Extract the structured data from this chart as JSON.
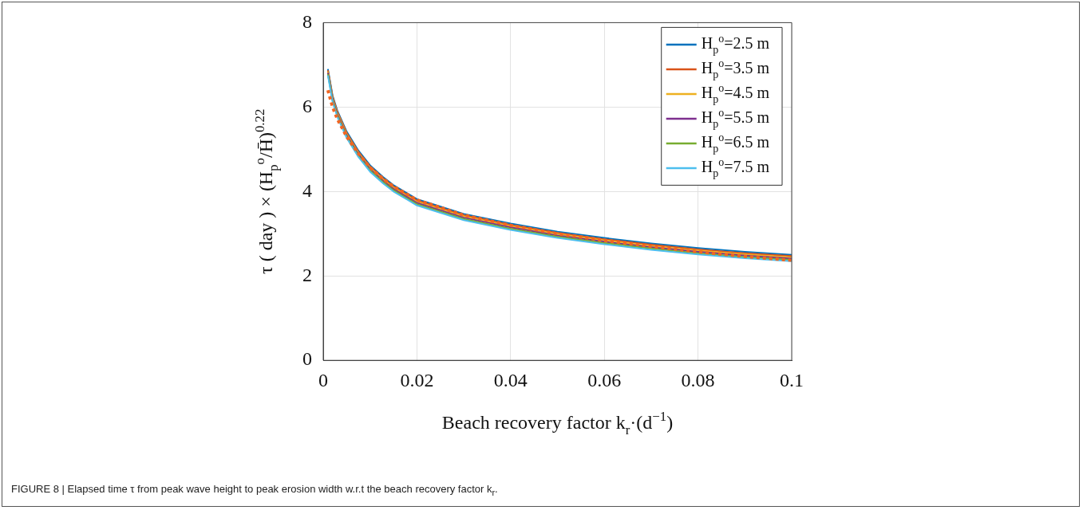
{
  "chart_data": {
    "type": "line",
    "xlabel": "Beach recovery factor k$_{r}$·(d$^{−1}$)",
    "ylabel": "τ ( day ) × (H$_{p}$$^{o}$/H̄)$^{0.22}$",
    "annotations": [
      "FIGURE 8 | Elapsed time τ from peak wave height to peak erosion width w.r.t the beach recovery factor k$_{r}$."
    ],
    "x": [
      0.001,
      0.002,
      0.003,
      0.005,
      0.0075,
      0.01,
      0.0128,
      0.015,
      0.02,
      0.03,
      0.04,
      0.05,
      0.06,
      0.07,
      0.08,
      0.09,
      0.1
    ],
    "series": [
      {
        "name": "H$_{p}$$^{o}$=2.5 m",
        "color": "#0072bd",
        "values": [
          6.9,
          6.27,
          5.92,
          5.42,
          4.97,
          4.62,
          4.34,
          4.15,
          3.82,
          3.47,
          3.24,
          3.05,
          2.9,
          2.77,
          2.66,
          2.57,
          2.5
        ]
      },
      {
        "name": "H$_{p}$$^{o}$=3.5 m",
        "color": "#d95319",
        "values": [
          6.87,
          6.24,
          5.89,
          5.39,
          4.94,
          4.59,
          4.31,
          4.12,
          3.79,
          3.44,
          3.21,
          3.02,
          2.87,
          2.74,
          2.63,
          2.54,
          2.47
        ]
      },
      {
        "name": "H$_{p}$$^{o}$=4.5 m",
        "color": "#edb120",
        "values": [
          6.84,
          6.21,
          5.86,
          5.36,
          4.91,
          4.56,
          4.28,
          4.09,
          3.76,
          3.41,
          3.18,
          2.99,
          2.84,
          2.71,
          2.6,
          2.51,
          2.44
        ]
      },
      {
        "name": "H$_{p}$$^{o}$=5.5 m",
        "color": "#7e2f8e",
        "values": [
          6.81,
          6.18,
          5.83,
          5.33,
          4.88,
          4.53,
          4.25,
          4.06,
          3.73,
          3.38,
          3.15,
          2.96,
          2.81,
          2.68,
          2.57,
          2.48,
          2.41
        ]
      },
      {
        "name": "H$_{p}$$^{o}$=6.5 m",
        "color": "#77ac30",
        "values": [
          6.78,
          6.15,
          5.8,
          5.3,
          4.85,
          4.5,
          4.22,
          4.03,
          3.7,
          3.35,
          3.12,
          2.93,
          2.78,
          2.65,
          2.54,
          2.45,
          2.38
        ]
      },
      {
        "name": "H$_{p}$$^{o}$=7.5 m",
        "color": "#4dbeee",
        "values": [
          6.75,
          6.12,
          5.77,
          5.27,
          4.82,
          4.47,
          4.19,
          4.0,
          3.67,
          3.32,
          3.09,
          2.9,
          2.75,
          2.62,
          2.51,
          2.42,
          2.35
        ]
      },
      {
        "color": "#f26522",
        "line_style": "dotted",
        "values": [
          6.4,
          6.0,
          5.72,
          5.3,
          4.9,
          4.57,
          4.3,
          4.12,
          3.8,
          3.44,
          3.2,
          3.0,
          2.84,
          2.7,
          2.57,
          2.46,
          2.37
        ]
      }
    ],
    "xlim": [
      0,
      0.1
    ],
    "ylim": [
      0,
      8
    ],
    "xticks": [
      0,
      0.02,
      0.04,
      0.06,
      0.08,
      0.1
    ],
    "yticks": [
      0,
      2,
      4,
      6,
      8
    ],
    "grid": true,
    "legend": "top right",
    "marker": "none"
  }
}
